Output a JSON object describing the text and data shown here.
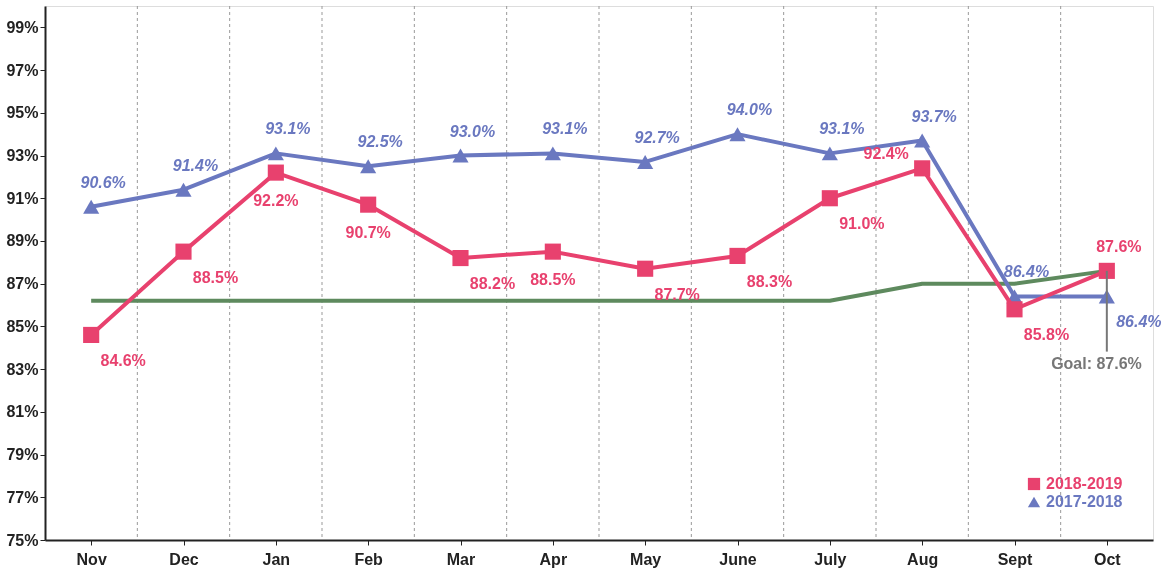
{
  "chart_data": {
    "type": "line",
    "categories": [
      "Nov",
      "Dec",
      "Jan",
      "Feb",
      "Mar",
      "Apr",
      "May",
      "June",
      "July",
      "Aug",
      "Sept",
      "Oct"
    ],
    "series": [
      {
        "name": "2018-2019",
        "color": "#e8416e",
        "marker": "square",
        "values": [
          84.6,
          88.5,
          92.2,
          90.7,
          88.2,
          88.5,
          87.7,
          88.3,
          91.0,
          92.4,
          85.8,
          87.6
        ],
        "value_labels": [
          "84.6%",
          "88.5%",
          "92.2%",
          "90.7%",
          "88.2%",
          "88.5%",
          "87.7%",
          "88.3%",
          "91.0%",
          "92.4%",
          "85.8%",
          "87.6%"
        ]
      },
      {
        "name": "2017-2018",
        "color": "#6a78c0",
        "marker": "triangle",
        "values": [
          90.6,
          91.4,
          93.1,
          92.5,
          93.0,
          93.1,
          92.7,
          94.0,
          93.1,
          93.7,
          86.4,
          86.4
        ],
        "value_labels": [
          "90.6%",
          "91.4%",
          "93.1%",
          "92.5%",
          "93.0%",
          "93.1%",
          "92.7%",
          "94.0%",
          "93.1%",
          "93.7%",
          "86.4%",
          "86.4%"
        ]
      },
      {
        "color": "#5e8a5e",
        "marker": "none",
        "values": [
          86.2,
          86.2,
          86.2,
          86.2,
          86.2,
          86.2,
          86.2,
          86.2,
          86.2,
          87.0,
          87.0,
          87.6
        ]
      }
    ],
    "ylim": [
      75,
      100
    ],
    "yticks": [
      {
        "value": 75,
        "label": "75%"
      },
      {
        "value": 77,
        "label": "77%"
      },
      {
        "value": 79,
        "label": "79%"
      },
      {
        "value": 81,
        "label": "81%"
      },
      {
        "value": 83,
        "label": "83%"
      },
      {
        "value": 85,
        "label": "85%"
      },
      {
        "value": 87,
        "label": "87%"
      },
      {
        "value": 89,
        "label": "89%"
      },
      {
        "value": 91,
        "label": "91%"
      },
      {
        "value": 93,
        "label": "93%"
      },
      {
        "value": 95,
        "label": "95%"
      },
      {
        "value": 97,
        "label": "97%"
      },
      {
        "value": 99,
        "label": "99%"
      }
    ],
    "annotations": [
      {
        "text": "Goal: 87.6%",
        "x": "Oct",
        "y": 87.6
      }
    ],
    "grid": "x",
    "legend": "bottom right"
  }
}
